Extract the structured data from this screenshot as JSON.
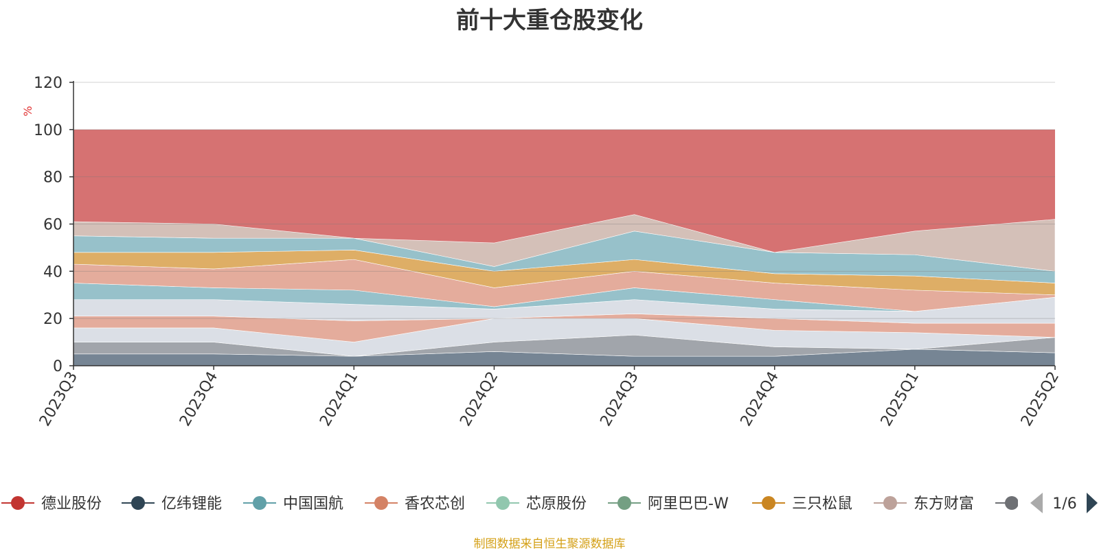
{
  "chart_data": {
    "type": "area",
    "title": "前十大重仓股变化",
    "ylabel": "%",
    "ylim": [
      0,
      120
    ],
    "y_ticks": [
      0,
      20,
      40,
      60,
      80,
      100,
      120
    ],
    "categories": [
      "2023Q3",
      "2023Q4",
      "2024Q1",
      "2024Q2",
      "2024Q3",
      "2024Q4",
      "2025Q1",
      "2025Q2"
    ],
    "grid": "horizontal",
    "stacked_to": 100,
    "top_band": {
      "name": "",
      "color": "#d46a6a"
    },
    "bands": [
      {
        "lower": [
          0,
          0,
          0,
          0,
          0,
          0,
          0,
          0
        ],
        "upper": [
          5,
          5,
          4,
          6,
          4,
          4,
          7,
          5.5
        ],
        "color": "#6b7b8c"
      },
      {
        "lower": [
          5,
          5,
          4,
          6,
          4,
          4,
          7,
          5.5
        ],
        "upper": [
          10,
          10,
          4,
          10,
          13,
          8,
          7,
          12
        ],
        "color": "#9a9ea4"
      },
      {
        "lower": [
          10,
          10,
          4,
          10,
          13,
          8,
          7,
          12
        ],
        "upper": [
          16,
          16,
          10,
          20,
          20,
          15,
          14,
          12
        ],
        "color": "#d8dde4"
      },
      {
        "lower": [
          16,
          16,
          10,
          20,
          20,
          15,
          14,
          12
        ],
        "upper": [
          21,
          21,
          19,
          20,
          22,
          20,
          18,
          18
        ],
        "color": "#e2a594"
      },
      {
        "lower": [
          21,
          21,
          19,
          20,
          22,
          20,
          18,
          18
        ],
        "upper": [
          28,
          28,
          26,
          24,
          28,
          24,
          23,
          29
        ],
        "color": "#d8dde4"
      },
      {
        "lower": [
          28,
          28,
          26,
          24,
          28,
          24,
          23,
          29
        ],
        "upper": [
          35,
          33,
          32,
          25,
          33,
          28,
          23,
          29
        ],
        "color": "#8fbcc6"
      },
      {
        "lower": [
          35,
          33,
          32,
          25,
          33,
          28,
          23,
          29
        ],
        "upper": [
          43,
          41,
          45,
          33,
          40,
          35,
          32,
          30
        ],
        "color": "#e2a594"
      },
      {
        "lower": [
          43,
          41,
          45,
          33,
          40,
          35,
          32,
          30
        ],
        "upper": [
          48,
          48,
          49,
          40,
          45,
          39,
          38,
          35
        ],
        "color": "#dca85a"
      },
      {
        "lower": [
          48,
          48,
          49,
          40,
          45,
          39,
          38,
          35
        ],
        "upper": [
          55,
          54,
          54,
          42,
          57,
          48,
          47,
          40
        ],
        "color": "#8fbcc6"
      },
      {
        "lower": [
          55,
          54,
          54,
          42,
          57,
          48,
          47,
          40
        ],
        "upper": [
          61,
          60,
          54,
          52,
          64,
          48,
          57,
          62
        ],
        "color": "#d1bbb3"
      }
    ],
    "legend": [
      {
        "name": "德业股份",
        "color": "#c23531"
      },
      {
        "name": "亿纬锂能",
        "color": "#2f4554"
      },
      {
        "name": "中国国航",
        "color": "#61a0a8"
      },
      {
        "name": "香农芯创",
        "color": "#d48265"
      },
      {
        "name": "芯原股份",
        "color": "#91c7ae"
      },
      {
        "name": "阿里巴巴-W",
        "color": "#749f83"
      },
      {
        "name": "三只松鼠",
        "color": "#ca8622"
      },
      {
        "name": "东方财富",
        "color": "#bda29a"
      },
      {
        "name": "",
        "color": "#6e7074"
      }
    ],
    "legend_page": "1/6"
  },
  "footer": "制图数据来自恒生聚源数据库"
}
